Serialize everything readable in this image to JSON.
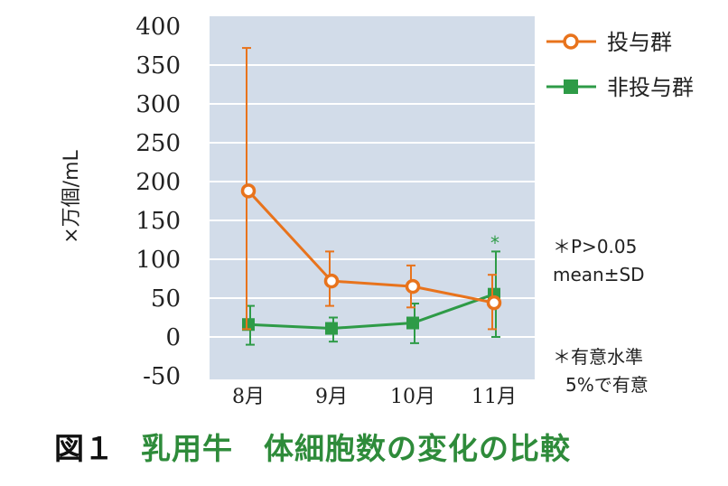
{
  "chart_data": {
    "type": "line",
    "title": "",
    "ylabel": "×万個/mL",
    "xlabel": "",
    "categories": [
      "8月",
      "9月",
      "10月",
      "11月"
    ],
    "ylim": [
      -50,
      400
    ],
    "yticks": [
      400,
      350,
      300,
      250,
      200,
      150,
      100,
      50,
      0,
      -50
    ],
    "grid": "horizontal",
    "legend_position": "top-right",
    "series": [
      {
        "name": "投与群",
        "color": "#e8731c",
        "marker": "open-circle",
        "values": [
          188,
          72,
          65,
          44
        ],
        "err_low": [
          10,
          40,
          38,
          10
        ],
        "err_high": [
          372,
          110,
          92,
          80
        ]
      },
      {
        "name": "非投与群",
        "color": "#2e9b47",
        "marker": "filled-square",
        "values": [
          16,
          11,
          18,
          55
        ],
        "err_low": [
          -10,
          -6,
          -8,
          0
        ],
        "err_high": [
          40,
          25,
          43,
          110
        ]
      }
    ],
    "annotations": {
      "significance_marker": "*",
      "notes": [
        "＊P>0.05",
        "mean±SD",
        "＊有意水準",
        "5%で有意"
      ]
    }
  },
  "caption": {
    "figure_number": "図１",
    "title": "乳用牛　体細胞数の変化の比較"
  }
}
